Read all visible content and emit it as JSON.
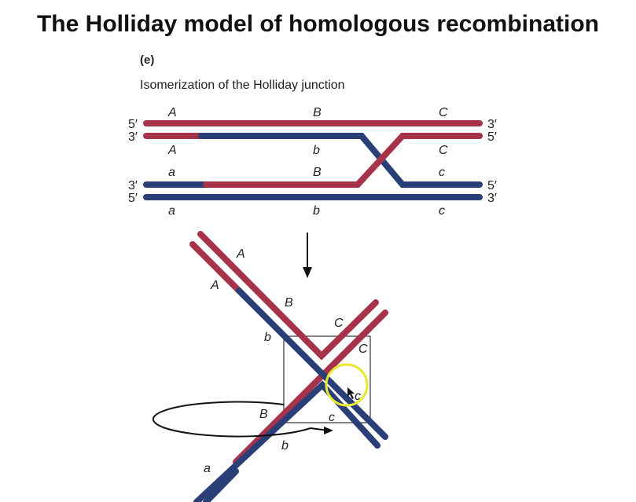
{
  "title": "The Holliday model of homologous recombination",
  "panel_label": "(e)",
  "subtitle": "Isomerization of the Holliday junction",
  "colors": {
    "red_strand": "#a7334a",
    "blue_strand": "#2a3f78",
    "highlight_circle": "#e8e830"
  },
  "top_diagram": {
    "ends_left": [
      "5′",
      "3′",
      "3′",
      "5′"
    ],
    "ends_right": [
      "3′",
      "5′",
      "5′",
      "3′"
    ],
    "labels_row1": [
      "A",
      "B",
      "C"
    ],
    "labels_row2": [
      "A",
      "b",
      "C"
    ],
    "labels_row3": [
      "a",
      "B",
      "c"
    ],
    "labels_row4": [
      "a",
      "b",
      "c"
    ]
  },
  "bottom_diagram": {
    "label_A1": "A",
    "label_A2": "A",
    "label_B_top": "B",
    "label_b_left": "b",
    "label_C1": "C",
    "label_C2": "C",
    "label_c_circle": "c",
    "label_B_bottom": "B",
    "label_c_bottom": "c",
    "label_b_bottom": "b",
    "label_a": "a"
  }
}
